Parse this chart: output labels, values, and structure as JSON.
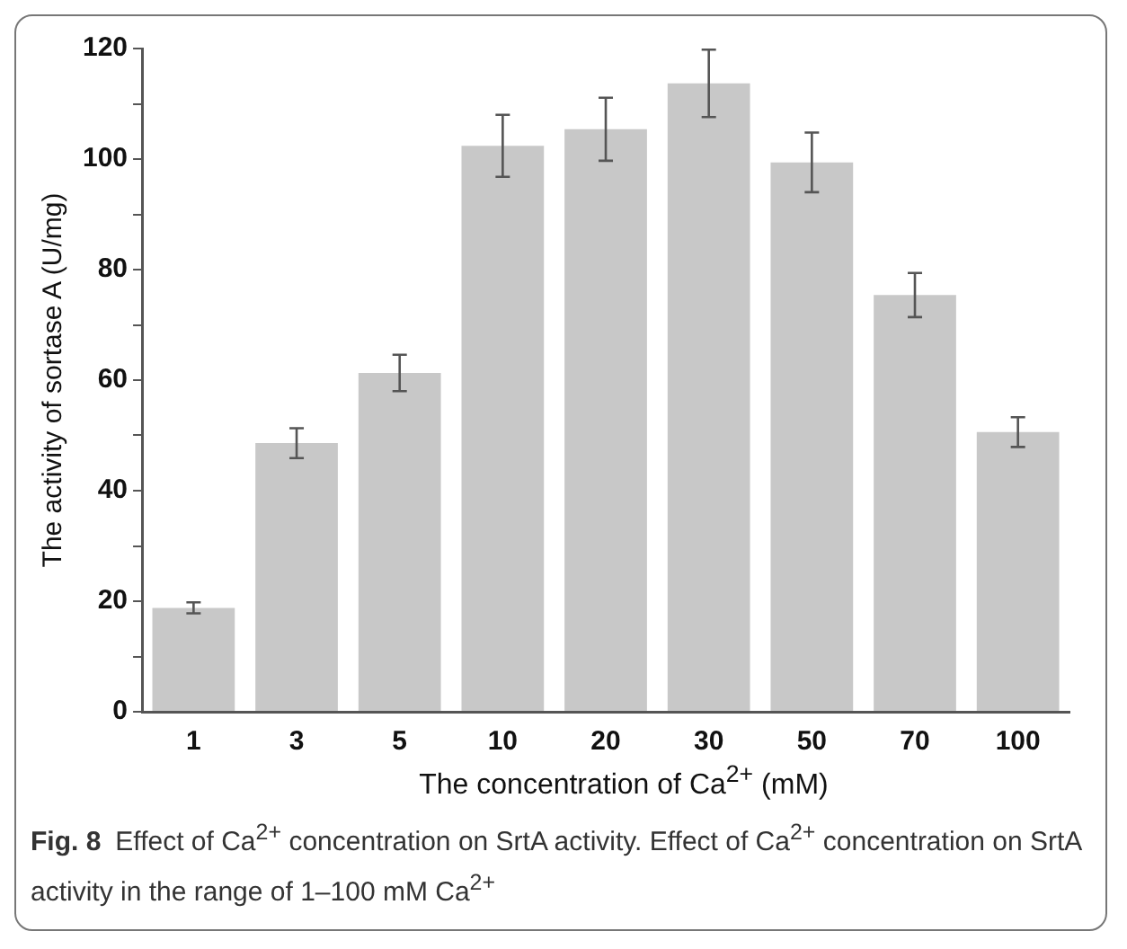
{
  "chart_data": {
    "type": "bar",
    "xlabel": "The concentration of Ca$^{2+}$ (mM)",
    "ylabel": "The activity of sortase A (U/mg)",
    "categories": [
      "1",
      "3",
      "5",
      "10",
      "20",
      "30",
      "50",
      "70",
      "100"
    ],
    "values": [
      18.8,
      48.6,
      61.3,
      102.4,
      105.4,
      113.7,
      99.4,
      75.4,
      50.6
    ],
    "errors": [
      1,
      2.7,
      3.3,
      5.6,
      5.7,
      6.1,
      5.4,
      4,
      2.7
    ],
    "color": "#c8c8c8",
    "ylim": [
      0,
      120
    ],
    "yticks": [
      0,
      {
        "value": 10,
        "label": null
      },
      20,
      {
        "value": 30,
        "label": null
      },
      40,
      {
        "value": 50,
        "label": null
      },
      60,
      {
        "value": 70,
        "label": null
      },
      80,
      {
        "value": 90,
        "label": null
      },
      100,
      {
        "value": 110,
        "label": null
      },
      120
    ],
    "grid": false,
    "legend": false,
    "annotations": [
      "Fig. 8",
      "Effect of Ca$^{2+}$ concentration on SrtA activity. Effect of Ca$^{2+}$ concentration on SrtA activity in the range of 1–100 mM Ca$^{2+}$"
    ]
  }
}
